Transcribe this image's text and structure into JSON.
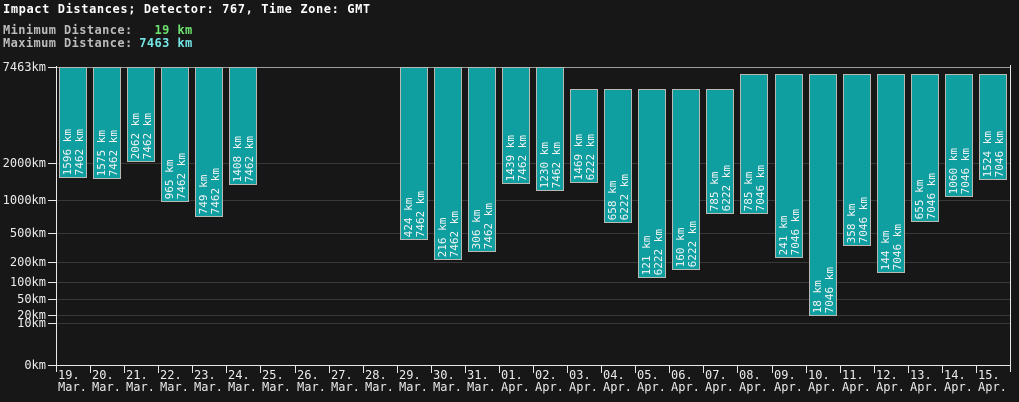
{
  "header": {
    "title": "Impact Distances; Detector: 767, Time Zone: GMT",
    "stats": [
      {
        "label": "Minimum Distance:",
        "value": "19 km"
      },
      {
        "label": "Maximum Distance:",
        "value": "7463 km"
      }
    ]
  },
  "colors": {
    "background": "#171717",
    "title_text": "#ffffff",
    "stat_label_text": "#bcbcbc",
    "min_value_green": "#6ee26e",
    "max_value_cyan": "#74e6e6",
    "bar_fill": "#109fa1",
    "bar_border": "#b9b9b1",
    "bar_label_text": "#f4f4f4",
    "gridline": "#383838",
    "gridline_top": "#9e9e9e",
    "axis": "#e8e8e8",
    "axis_text": "#ececec"
  },
  "chart_data": {
    "type": "bar",
    "title": "Impact Distances; Detector: 767, Time Zone: GMT",
    "xlabel": "",
    "ylabel": "",
    "ylim": [
      0,
      7463
    ],
    "grid": true,
    "legend": false,
    "scale": "log-like",
    "bar_value_unit": "km",
    "yticks": [
      {
        "value": 7463,
        "label": "7463km"
      },
      {
        "value": 2000,
        "label": "2000km"
      },
      {
        "value": 1000,
        "label": "1000km"
      },
      {
        "value": 500,
        "label": "500km"
      },
      {
        "value": 200,
        "label": "200km"
      },
      {
        "value": 100,
        "label": "100km"
      },
      {
        "value": 50,
        "label": "50km"
      },
      {
        "value": 20,
        "label": "20km"
      },
      {
        "value": 10,
        "label": "10km"
      },
      {
        "value": 0,
        "label": "0km"
      }
    ],
    "categories": [
      "19. Mar.",
      "20. Mar.",
      "21. Mar.",
      "22. Mar.",
      "23. Mar.",
      "24. Mar.",
      "25. Mar.",
      "26. Mar.",
      "27. Mar.",
      "28. Mar.",
      "29. Mar.",
      "30. Mar.",
      "31. Mar.",
      "01. Apr.",
      "02. Apr.",
      "03. Apr.",
      "04. Apr.",
      "05. Apr.",
      "06. Apr.",
      "07. Apr.",
      "08. Apr.",
      "09. Apr.",
      "10. Apr.",
      "11. Apr.",
      "12. Apr.",
      "13. Apr.",
      "14. Apr.",
      "15. Apr."
    ],
    "series": [
      {
        "name": "daily_minimum_distance_km",
        "values": [
          1596,
          1575,
          2062,
          965,
          749,
          1408,
          null,
          null,
          null,
          null,
          424,
          216,
          306,
          1439,
          1230,
          1469,
          658,
          121,
          160,
          785,
          785,
          241,
          18,
          358,
          144,
          655,
          1060,
          1524
        ]
      },
      {
        "name": "daily_maximum_distance_km",
        "values": [
          7462,
          7462,
          7462,
          7462,
          7462,
          7462,
          null,
          null,
          null,
          null,
          7462,
          7462,
          7462,
          7462,
          7462,
          6222,
          6222,
          6222,
          6222,
          6222,
          7046,
          7046,
          7046,
          7046,
          7046,
          7046,
          7046,
          7046
        ]
      }
    ]
  }
}
